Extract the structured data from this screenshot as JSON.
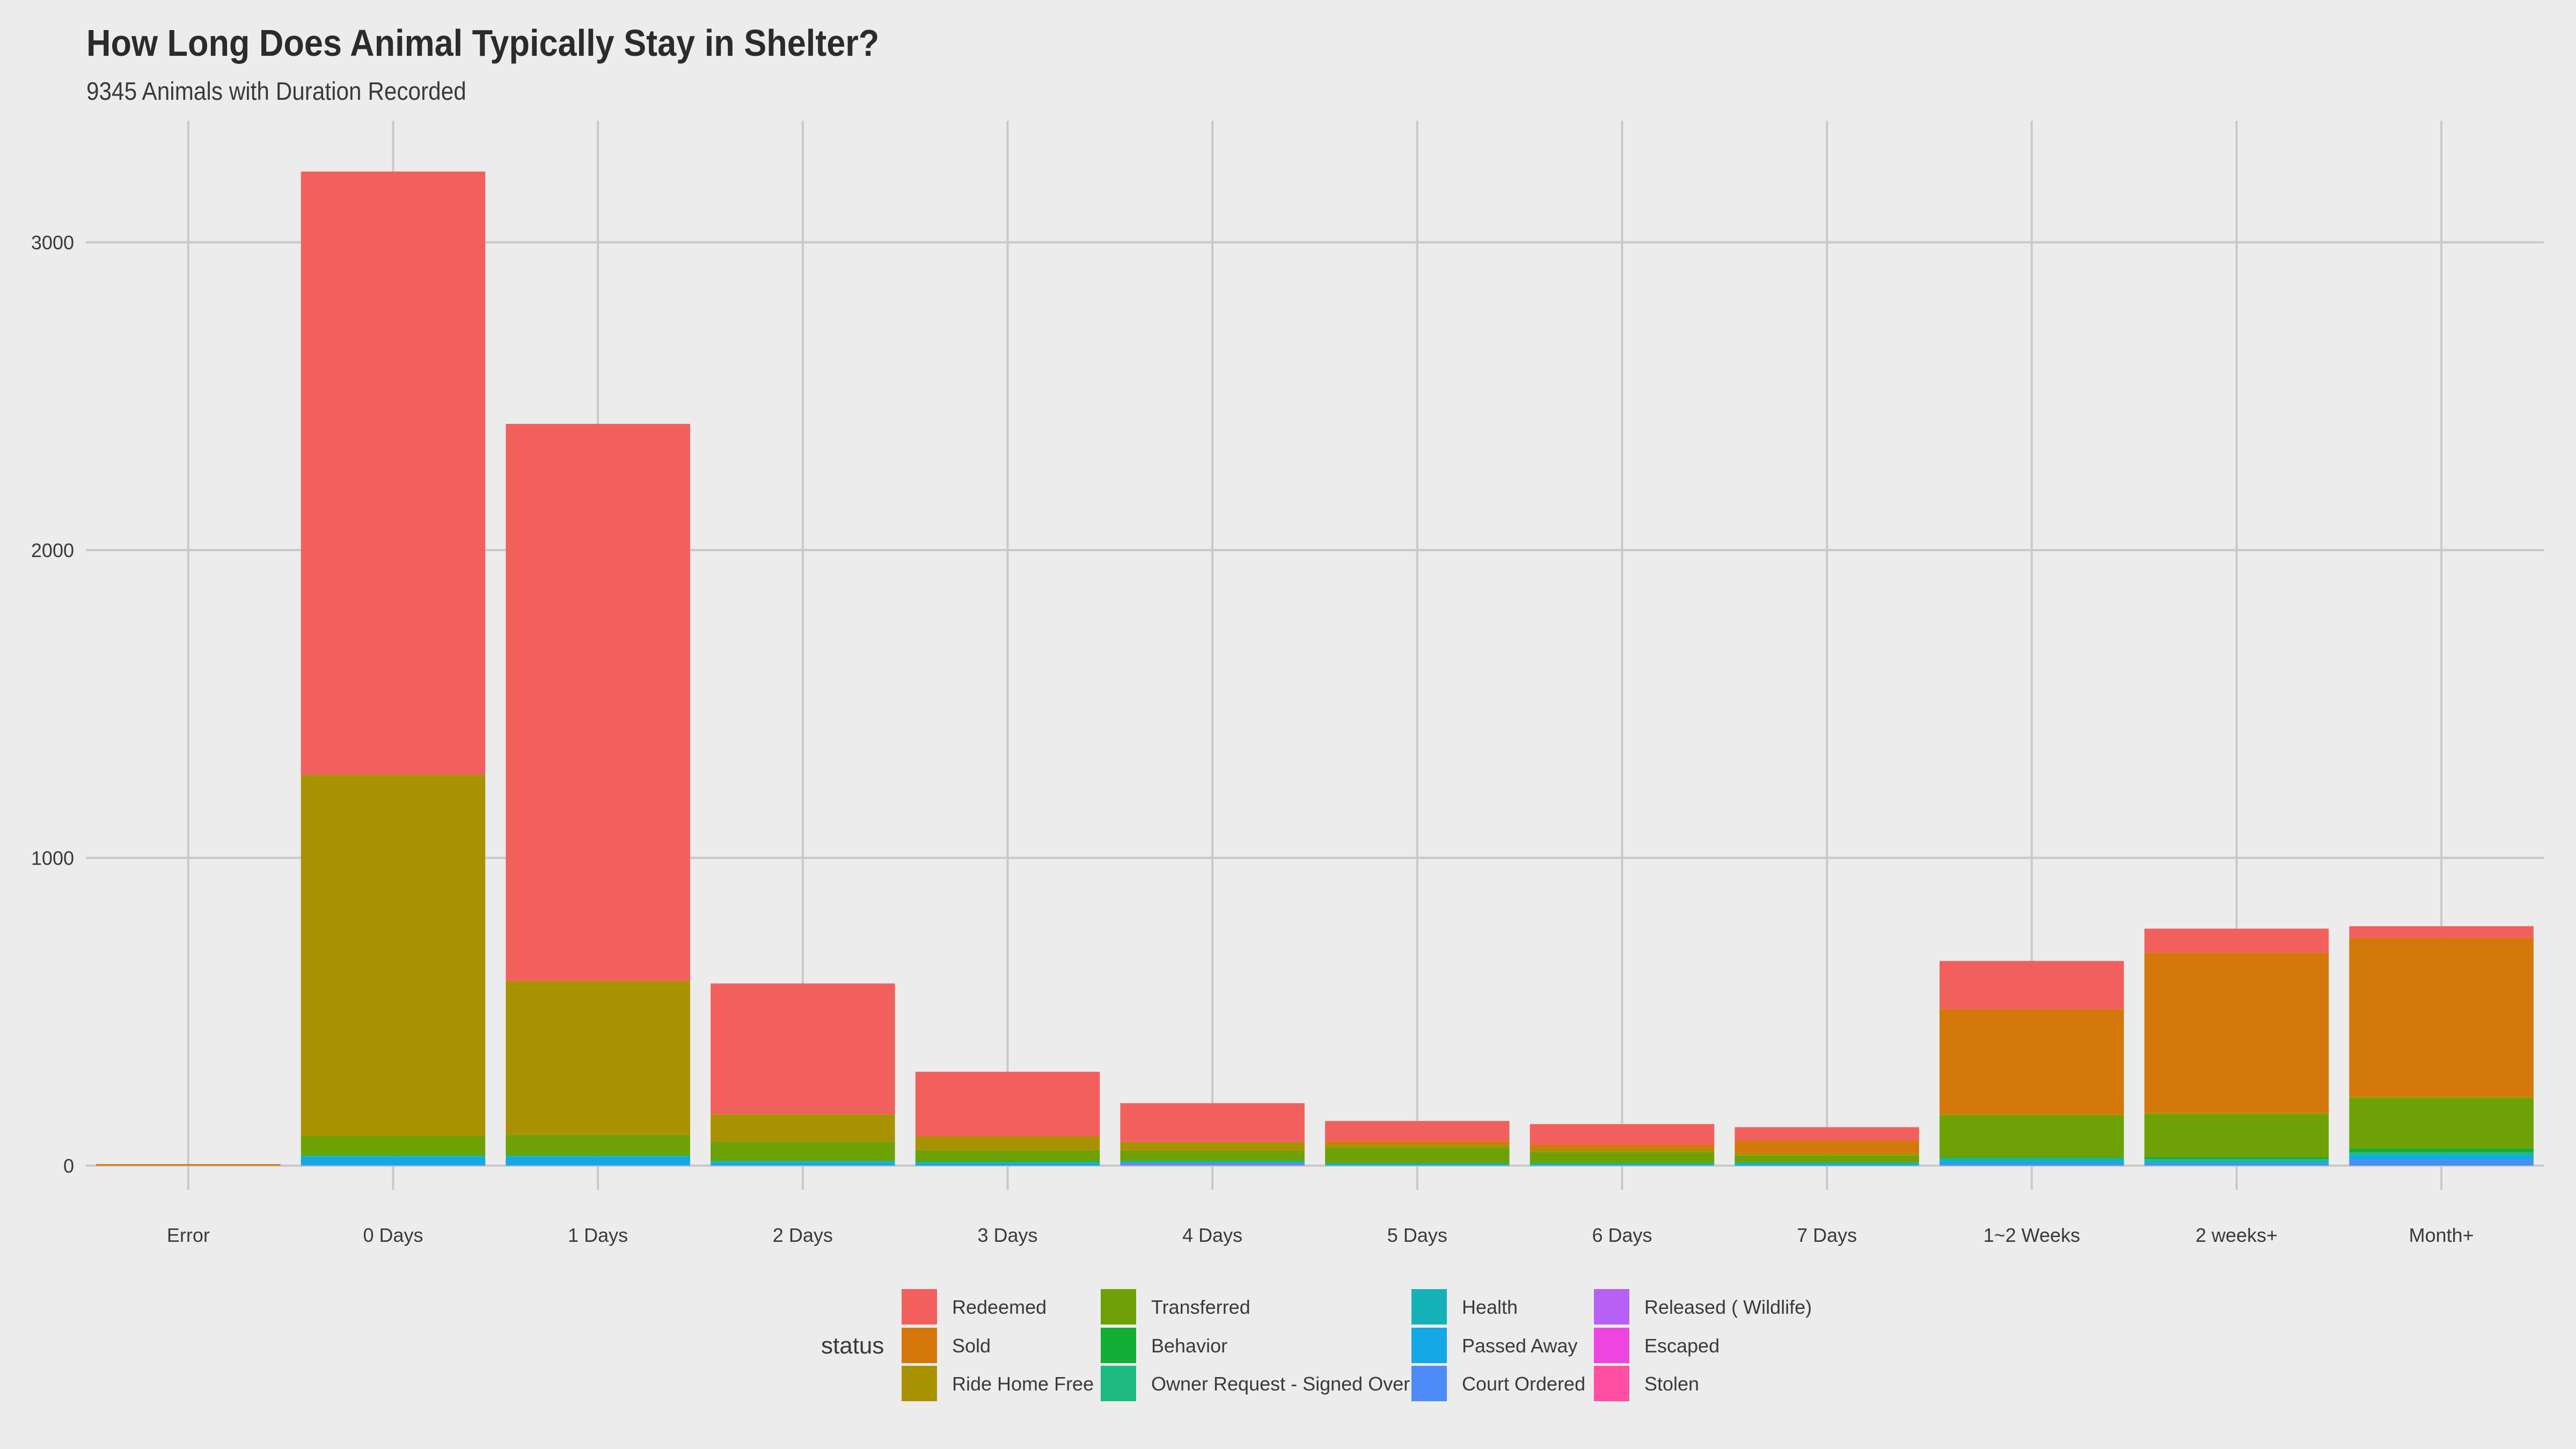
{
  "chart_data": {
    "type": "bar",
    "stacked": true,
    "title": "How Long Does Animal Typically Stay in Shelter?",
    "subtitle": "9345 Animals with Duration Recorded",
    "xlabel": "",
    "ylabel": "",
    "ylim": [
      0,
      3300
    ],
    "y_ticks": [
      0,
      1000,
      2000,
      3000
    ],
    "grid": true,
    "legend_position": "bottom",
    "legend_title": "status",
    "categories": [
      "Error",
      "0 Days",
      "1 Days",
      "2 Days",
      "3 Days",
      "4 Days",
      "5 Days",
      "6 Days",
      "7 Days",
      "1~2 Weeks",
      "2 weeks+",
      "Month+"
    ],
    "series": [
      {
        "name": "Stolen",
        "color": "#FF4FA3",
        "values": [
          0,
          0,
          0,
          0,
          0,
          0,
          0,
          0,
          0,
          0,
          0,
          0
        ]
      },
      {
        "name": "Escaped",
        "color": "#EE45E0",
        "values": [
          0,
          0,
          0,
          0,
          0,
          0,
          0,
          0,
          0,
          0,
          0,
          0
        ]
      },
      {
        "name": "Released ( Wildlife)",
        "color": "#B861F6",
        "values": [
          0,
          0,
          0,
          0,
          0,
          3,
          0,
          0,
          0,
          0,
          0,
          0
        ]
      },
      {
        "name": "Court Ordered",
        "color": "#4D8BF7",
        "values": [
          0,
          2,
          2,
          2,
          0,
          2,
          0,
          0,
          0,
          5,
          5,
          18
        ]
      },
      {
        "name": "Passed Away",
        "color": "#14A8E6",
        "values": [
          0,
          25,
          25,
          8,
          7,
          5,
          3,
          3,
          5,
          10,
          5,
          15
        ]
      },
      {
        "name": "Health",
        "color": "#14B2B6",
        "values": [
          0,
          3,
          3,
          2,
          2,
          2,
          2,
          2,
          2,
          5,
          7,
          5
        ]
      },
      {
        "name": "Owner Request - Signed Over",
        "color": "#1DBA82",
        "values": [
          0,
          3,
          3,
          3,
          3,
          2,
          2,
          2,
          2,
          5,
          5,
          5
        ]
      },
      {
        "name": "Behavior",
        "color": "#13AE35",
        "values": [
          0,
          2,
          2,
          2,
          3,
          2,
          2,
          2,
          2,
          3,
          5,
          12
        ]
      },
      {
        "name": "Transferred",
        "color": "#6EA106",
        "values": [
          0,
          60,
          65,
          60,
          35,
          33,
          50,
          35,
          21,
          135,
          140,
          165
        ]
      },
      {
        "name": "Ride Home Free",
        "color": "#A99201",
        "values": [
          0,
          1175,
          500,
          90,
          45,
          28,
          10,
          10,
          10,
          5,
          5,
          5
        ]
      },
      {
        "name": "Sold",
        "color": "#D4780B",
        "values": [
          5,
          0,
          0,
          0,
          0,
          0,
          10,
          15,
          40,
          340,
          520,
          515
        ]
      },
      {
        "name": "Redeemed",
        "color": "#F2605D",
        "values": [
          0,
          1960,
          1810,
          425,
          210,
          126,
          66,
          66,
          43,
          157,
          78,
          38
        ]
      }
    ]
  }
}
